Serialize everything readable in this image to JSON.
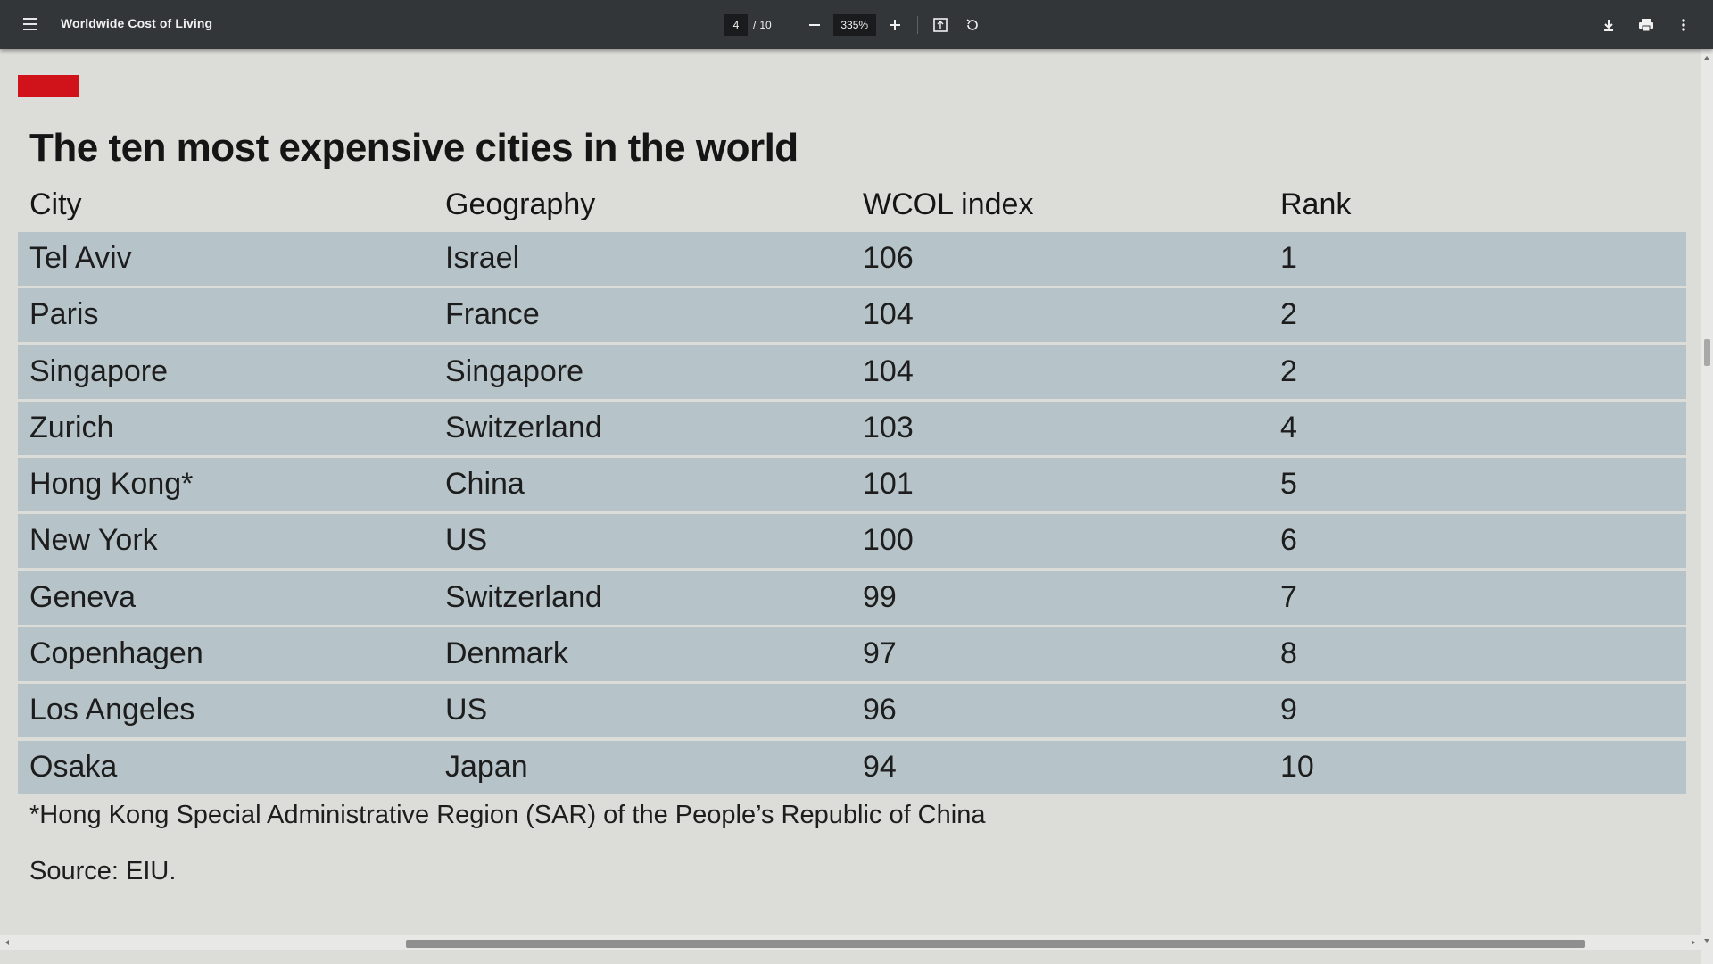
{
  "toolbar": {
    "title": "Worldwide Cost of Living",
    "page_current": "4",
    "page_separator": "/",
    "page_total": "10",
    "zoom": "335%",
    "icons": [
      "menu-icon",
      "zoom-out-icon",
      "zoom-in-icon",
      "fit-page-icon",
      "rotate-icon",
      "download-icon",
      "print-icon",
      "more-icon"
    ]
  },
  "document": {
    "accent_color": "#d0121a",
    "row_color": "#b6c4c9",
    "heading": "The ten most expensive cities in the world",
    "columns": [
      "City",
      "Geography",
      "WCOL index",
      "Rank"
    ],
    "rows": [
      [
        "Tel Aviv",
        "Israel",
        "106",
        "1"
      ],
      [
        "Paris",
        "France",
        "104",
        "2"
      ],
      [
        "Singapore",
        "Singapore",
        "104",
        "2"
      ],
      [
        "Zurich",
        "Switzerland",
        "103",
        "4"
      ],
      [
        "Hong Kong*",
        "China",
        "101",
        "5"
      ],
      [
        "New York",
        "US",
        "100",
        "6"
      ],
      [
        "Geneva",
        "Switzerland",
        "99",
        "7"
      ],
      [
        "Copenhagen",
        "Denmark",
        "97",
        "8"
      ],
      [
        "Los Angeles",
        "US",
        "96",
        "9"
      ],
      [
        "Osaka",
        "Japan",
        "94",
        "10"
      ]
    ],
    "footnote": "*Hong Kong Special Administrative Region (SAR) of the People’s Republic of China",
    "source": "Source: EIU."
  }
}
